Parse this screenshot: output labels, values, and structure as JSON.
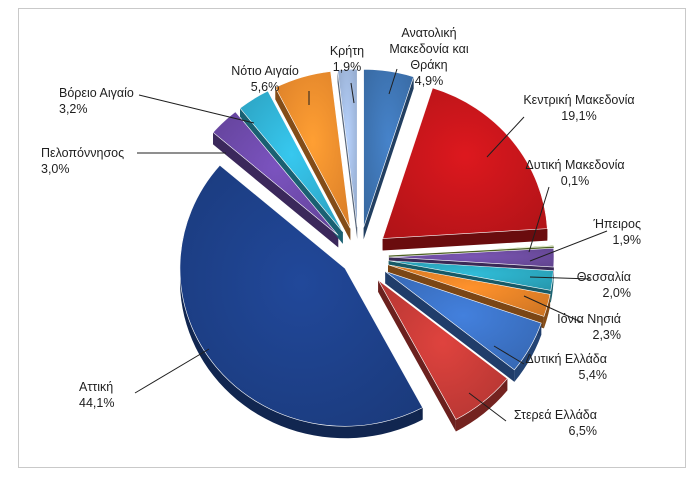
{
  "chart_data": {
    "type": "pie",
    "title": "",
    "slices": [
      {
        "label": "Ανατολική Μακεδονία και Θράκη",
        "lines": [
          "Ανατολική",
          "Μακεδονία και",
          "Θράκη"
        ],
        "value": 4.9,
        "value_label": "4,9%",
        "color": "#3d72b0"
      },
      {
        "label": "Κεντρική Μακεδονία",
        "lines": [
          "Κεντρική Μακεδονία"
        ],
        "value": 19.1,
        "value_label": "19,1%",
        "color": "#c0151a"
      },
      {
        "label": "Δυτική Μακεδονία",
        "lines": [
          "Δυτική Μακεδονία"
        ],
        "value": 0.1,
        "value_label": "0,1%",
        "color": "#8ab13c"
      },
      {
        "label": "Ήπειρος",
        "lines": [
          "Ήπειρος"
        ],
        "value": 1.9,
        "value_label": "1,9%",
        "color": "#6a4a9c"
      },
      {
        "label": "Θεσσαλία",
        "lines": [
          "Θεσσαλία"
        ],
        "value": 2.0,
        "value_label": "2,0%",
        "color": "#2aa4bc"
      },
      {
        "label": "Ιόνια Νησιά",
        "lines": [
          "Ιόνια Νησιά"
        ],
        "value": 2.3,
        "value_label": "2,3%",
        "color": "#e07f26"
      },
      {
        "label": "Δυτική Ελλάδα",
        "lines": [
          "Δυτική Ελλάδα"
        ],
        "value": 5.4,
        "value_label": "5,4%",
        "color": "#3a6fc0"
      },
      {
        "label": "Στερεά Ελλάδα",
        "lines": [
          "Στερεά Ελλάδα"
        ],
        "value": 6.5,
        "value_label": "6,5%",
        "color": "#c23a36"
      },
      {
        "label": "Αττική",
        "lines": [
          "Αττική"
        ],
        "value": 44.1,
        "value_label": "44,1%",
        "color": "#1d3f86"
      },
      {
        "label": "Πελοπόννησος",
        "lines": [
          "Πελοπόννησος"
        ],
        "value": 3.0,
        "value_label": "3,0%",
        "color": "#6b48a6"
      },
      {
        "label": "Βόρειο Αιγαίο",
        "lines": [
          "Βόρειο Αιγαίο"
        ],
        "value": 3.2,
        "value_label": "3,2%",
        "color": "#30aed0"
      },
      {
        "label": "Νότιο Αιγαίο",
        "lines": [
          "Νότιο Αιγαίο"
        ],
        "value": 5.6,
        "value_label": "5,6%",
        "color": "#ef8a2c"
      },
      {
        "label": "Κρήτη",
        "lines": [
          "Κρήτη"
        ],
        "value": 1.9,
        "value_label": "1,9%",
        "color": "#9fb7dc"
      }
    ],
    "legend": "none",
    "exploded": true,
    "style": "3d"
  }
}
